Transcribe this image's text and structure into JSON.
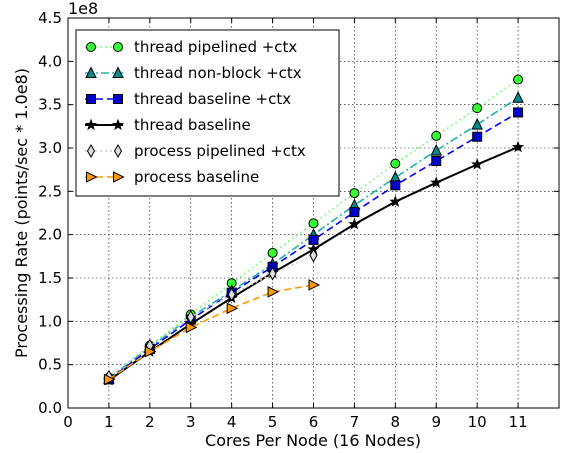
{
  "chart_data": {
    "type": "line",
    "title": "",
    "xlabel": "Cores Per Node (16 Nodes)",
    "ylabel": "Processing Rate (points/sec * 1.0e8)",
    "y_offset_label": "1e8",
    "xlim": [
      0,
      12
    ],
    "ylim": [
      0.0,
      4.5
    ],
    "x_ticks": [
      "0",
      "1",
      "2",
      "3",
      "4",
      "5",
      "6",
      "7",
      "8",
      "9",
      "10",
      "11"
    ],
    "y_ticks": [
      "0.0",
      "0.5",
      "1.0",
      "1.5",
      "2.0",
      "2.5",
      "3.0",
      "3.5",
      "4.0",
      "4.5"
    ],
    "grid": true,
    "legend_position": "top-left",
    "series": [
      {
        "name": "thread pipelined +ctx",
        "color": "#33ff33",
        "line_color": "#7fff7f",
        "marker": "circle",
        "dash": "dotted",
        "x": [
          1,
          2,
          3,
          4,
          5,
          6,
          7,
          8,
          9,
          10,
          11
        ],
        "y": [
          0.35,
          0.72,
          1.08,
          1.44,
          1.79,
          2.13,
          2.48,
          2.82,
          3.14,
          3.46,
          3.79
        ]
      },
      {
        "name": "thread non-block +ctx",
        "color": "#008b8b",
        "line_color": "#20b2aa",
        "marker": "triangle",
        "dash": "dashdot",
        "x": [
          1,
          2,
          3,
          4,
          5,
          6,
          7,
          8,
          9,
          10,
          11
        ],
        "y": [
          0.34,
          0.7,
          1.05,
          1.35,
          1.66,
          2.0,
          2.34,
          2.66,
          2.97,
          3.27,
          3.58
        ]
      },
      {
        "name": "thread baseline +ctx",
        "color": "#0000cc",
        "line_color": "#0000ff",
        "marker": "square",
        "dash": "dashed",
        "x": [
          1,
          2,
          3,
          4,
          5,
          6,
          7,
          8,
          9,
          10,
          11
        ],
        "y": [
          0.33,
          0.68,
          1.02,
          1.33,
          1.63,
          1.94,
          2.26,
          2.57,
          2.85,
          3.13,
          3.41
        ]
      },
      {
        "name": "thread baseline",
        "color": "#000000",
        "line_color": "#000000",
        "marker": "star",
        "dash": "solid",
        "x": [
          1,
          2,
          3,
          4,
          5,
          6,
          7,
          8,
          9,
          10,
          11
        ],
        "y": [
          0.32,
          0.65,
          0.97,
          1.27,
          1.56,
          1.83,
          2.12,
          2.38,
          2.6,
          2.81,
          3.01
        ]
      },
      {
        "name": "process pipelined +ctx",
        "color": "#dddddd",
        "line_color": "#cccccc",
        "marker": "thin-diamond",
        "dash": "dotted",
        "x": [
          1,
          2,
          3,
          4,
          5,
          6
        ],
        "y": [
          0.36,
          0.72,
          1.05,
          1.31,
          1.55,
          1.76
        ]
      },
      {
        "name": "process baseline",
        "color": "#ff9900",
        "line_color": "#ff9900",
        "marker": "triangle-right",
        "dash": "dashed",
        "x": [
          1,
          2,
          3,
          4,
          5,
          6
        ],
        "y": [
          0.33,
          0.65,
          0.93,
          1.15,
          1.34,
          1.42
        ]
      }
    ]
  }
}
